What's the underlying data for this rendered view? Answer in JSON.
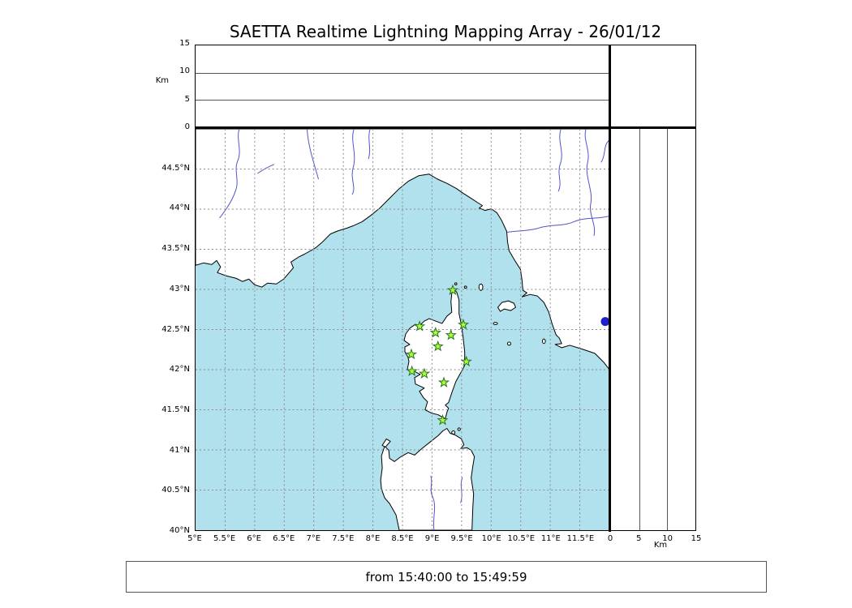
{
  "title": "SAETTA Realtime Lightning Mapping Array - 26/01/12",
  "status_bar": {
    "text": "from 15:40:00 to 15:49:59"
  },
  "alt_lon_panel": {
    "ylabel": "Km",
    "yticks": [
      "15",
      "10",
      "5",
      "0"
    ],
    "ylim_km": [
      0,
      15
    ]
  },
  "alt_lat_panel": {
    "xlabel": "Km",
    "xticks": [
      "0",
      "5",
      "10",
      "15"
    ],
    "xlim_km": [
      0,
      15
    ]
  },
  "map_panel": {
    "lon_ticks": [
      "5°E",
      "5.5°E",
      "6°E",
      "6.5°E",
      "7°E",
      "7.5°E",
      "8°E",
      "8.5°E",
      "9°E",
      "9.5°E",
      "10°E",
      "10.5°E",
      "11°E",
      "11.5°E"
    ],
    "lat_ticks": [
      "44.5°N",
      "44°N",
      "43.5°N",
      "43°N",
      "42.5°N",
      "42°N",
      "41.5°N",
      "41°N",
      "40.5°N",
      "40°N"
    ],
    "lon_range_deg_e": [
      5,
      12
    ],
    "lat_range_deg_n": [
      40,
      45
    ],
    "grid_step_deg": 0.5
  },
  "colors": {
    "sea": "#b0e1ec",
    "land": "#ffffff",
    "coastline": "#000000",
    "river": "#5353cb",
    "grid": "#8a8a8a",
    "station_fill": "#adff2f",
    "station_edge": "#267326",
    "lake": "#2121cc",
    "frame": "#000000"
  },
  "chart_data": {
    "type": "scatter",
    "title": "SAETTA Realtime Lightning Mapping Array - 26/01/12",
    "time_window": {
      "from": "15:40:00",
      "to": "15:49:59"
    },
    "panels": {
      "altitude_vs_longitude": {
        "xlim_deg_e": [
          5,
          12
        ],
        "ylim_km": [
          0,
          15
        ],
        "yticks_km": [
          0,
          5,
          10,
          15
        ],
        "ylabel": "Km",
        "points": []
      },
      "map": {
        "lon_lim_deg_e": [
          5,
          12
        ],
        "lat_lim_deg_n": [
          40,
          45
        ],
        "grid": "dashed 0.5 deg",
        "points": []
      },
      "altitude_vs_latitude": {
        "xlim_km": [
          0,
          15
        ],
        "ylim_deg_n": [
          40,
          45
        ],
        "xticks_km": [
          0,
          5,
          10,
          15
        ],
        "xlabel": "Km",
        "points": []
      }
    },
    "lightning_sources": [],
    "stations": [
      {
        "lon": 9.35,
        "lat": 42.99
      },
      {
        "lon": 8.79,
        "lat": 42.54
      },
      {
        "lon": 9.06,
        "lat": 42.46
      },
      {
        "lon": 9.32,
        "lat": 42.43
      },
      {
        "lon": 9.53,
        "lat": 42.56
      },
      {
        "lon": 9.1,
        "lat": 42.29
      },
      {
        "lon": 8.65,
        "lat": 42.19
      },
      {
        "lon": 9.58,
        "lat": 42.1
      },
      {
        "lon": 8.66,
        "lat": 41.98
      },
      {
        "lon": 8.87,
        "lat": 41.95
      },
      {
        "lon": 9.2,
        "lat": 41.84
      },
      {
        "lon": 9.18,
        "lat": 41.37
      }
    ],
    "lakes": [
      {
        "lon": 11.93,
        "lat": 42.6
      }
    ]
  }
}
